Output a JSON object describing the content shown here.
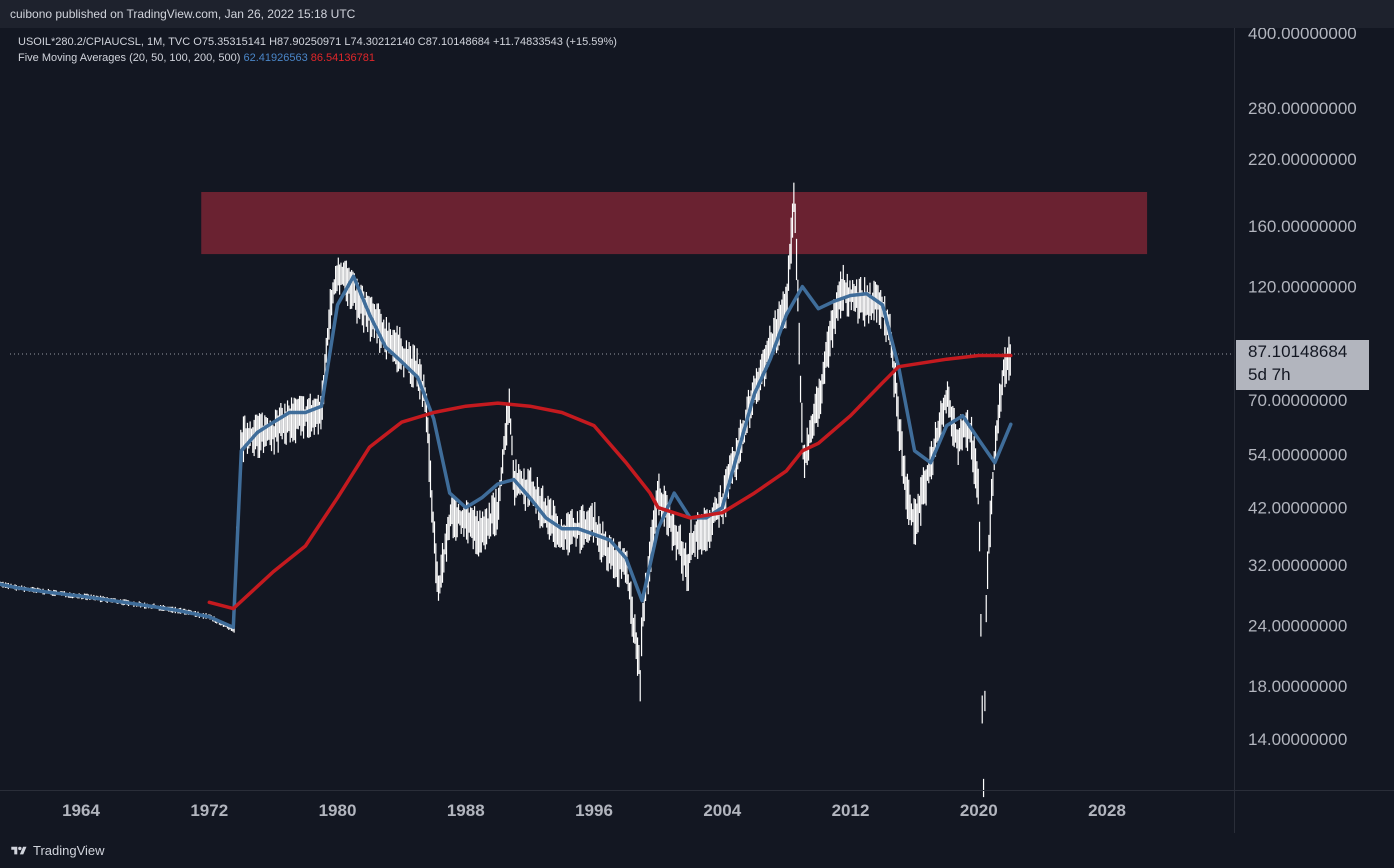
{
  "header": {
    "publish_text": "cuibono published on TradingView.com, Jan 26, 2022 15:18 UTC"
  },
  "legend": {
    "symbol_line": "USOIL*280.2/CPIAUCSL, 1M, TVC",
    "ohlc": "O75.35315141  H87.90250971  L74.30212140  C87.10148684  +11.74833543 (+15.59%)",
    "ma_name": "Five Moving Averages (20, 50, 100, 200, 500)",
    "ma1_value": "62.41926563",
    "ma2_value": "86.54136781"
  },
  "price_tag": {
    "price": "87.10148684",
    "countdown": "5d 7h"
  },
  "footer": {
    "brand": "TradingView"
  },
  "colors": {
    "background": "#131722",
    "ma_blue": "#3f6d9a",
    "ma_red": "#c41a1f",
    "zone": "#6a2231",
    "price_bars": "#ffffff"
  },
  "chart_data": {
    "type": "line",
    "title": "",
    "y_scale": "log",
    "ylim": [
      11,
      420
    ],
    "xlim": [
      1958.3,
      2035.0
    ],
    "y_ticks": [
      "400.00000000",
      "280.00000000",
      "220.00000000",
      "160.00000000",
      "120.00000000",
      "70.00000000",
      "54.00000000",
      "42.00000000",
      "32.00000000",
      "24.00000000",
      "18.00000000",
      "14.00000000"
    ],
    "y_tick_values": [
      400,
      280,
      220,
      160,
      120,
      70,
      54,
      42,
      32,
      24,
      18,
      14
    ],
    "x_ticks": [
      "1964",
      "1972",
      "1980",
      "1988",
      "1996",
      "2004",
      "2012",
      "2020",
      "2028"
    ],
    "x_tick_values": [
      1964,
      1972,
      1980,
      1988,
      1996,
      2004,
      2012,
      2020,
      2028
    ],
    "last_price": 87.10148684,
    "resistance_zone": {
      "x_start": 1971.5,
      "x_end": 2030.5,
      "y_low": 140,
      "y_high": 188
    },
    "series": [
      {
        "kind": "price",
        "x": [
          1958.3,
          1960,
          1962,
          1964,
          1966,
          1968,
          1970,
          1972,
          1973.5,
          1974,
          1975,
          1976,
          1977,
          1978,
          1979,
          1979.5,
          1980,
          1980.5,
          1981,
          1981.5,
          1982,
          1983,
          1984,
          1985,
          1985.5,
          1986,
          1986.3,
          1987,
          1988,
          1989,
          1990,
          1990.7,
          1991,
          1992,
          1993,
          1994,
          1995,
          1996,
          1997,
          1998,
          1998.9,
          1999,
          2000,
          2001,
          2001.9,
          2002,
          2003,
          2004,
          2005,
          2006,
          2007,
          2008,
          2008.5,
          2009,
          2009.1,
          2010,
          2011,
          2011.5,
          2012,
          2013,
          2014,
          2014.5,
          2015,
          2015.5,
          2016,
          2017,
          2018,
          2018.7,
          2019,
          2019.5,
          2020,
          2020.3,
          2020.5,
          2021,
          2021.5,
          2022
        ],
        "y": [
          29.5,
          28.7,
          28.1,
          27.6,
          27.0,
          26.4,
          25.8,
          25.0,
          23.5,
          58,
          60,
          60,
          64,
          65,
          66,
          105,
          130,
          125,
          115,
          110,
          105,
          95,
          88,
          80,
          70,
          38,
          28,
          40,
          40,
          37,
          42,
          70,
          48,
          46,
          41,
          37,
          38,
          39,
          33,
          32,
          18.5,
          25,
          45,
          38,
          31,
          36,
          38,
          43,
          55,
          74,
          90,
          112,
          185,
          58,
          52,
          70,
          105,
          120,
          115,
          112,
          110,
          95,
          64,
          45,
          39,
          52,
          72,
          57,
          62,
          60,
          45,
          11,
          30,
          55,
          80,
          87.1
        ]
      },
      {
        "name": "MA 20",
        "x": [
          1958.3,
          1960,
          1962,
          1964,
          1966,
          1968,
          1970,
          1972,
          1973.5,
          1974,
          1975,
          1976,
          1977,
          1978,
          1979,
          1980,
          1981,
          1982,
          1983,
          1984,
          1985,
          1986,
          1987,
          1988,
          1989,
          1990,
          1991,
          1992,
          1993,
          1994,
          1995,
          1996,
          1997,
          1998,
          1999,
          2000,
          2001,
          2002,
          2003,
          2004,
          2005,
          2006,
          2007,
          2008,
          2009,
          2010,
          2011,
          2012,
          2013,
          2014,
          2015,
          2016,
          2017,
          2018,
          2019,
          2020,
          2021,
          2022
        ],
        "y": [
          29.5,
          28.7,
          28.1,
          27.6,
          27.0,
          26.4,
          25.8,
          25.0,
          23.8,
          55,
          60,
          63,
          66,
          66,
          68,
          110,
          126,
          105,
          90,
          84,
          78,
          64,
          45,
          42,
          44,
          47,
          48,
          44,
          40,
          38,
          38,
          37,
          36,
          33,
          27,
          38,
          45,
          40,
          40,
          42,
          55,
          72,
          85,
          105,
          120,
          108,
          112,
          115,
          116,
          110,
          82,
          55,
          52,
          62,
          65,
          58,
          52,
          62.4
        ]
      },
      {
        "name": "MA 200",
        "x": [
          1972,
          1973.5,
          1976,
          1978,
          1980,
          1982,
          1984,
          1986,
          1988,
          1990,
          1992,
          1994,
          1996,
          1998,
          1999.5,
          2000,
          2002,
          2004,
          2006,
          2008,
          2009,
          2010,
          2012,
          2014,
          2015,
          2016,
          2018,
          2020,
          2022
        ],
        "y": [
          26.8,
          26.0,
          31,
          35,
          44,
          56,
          63,
          66,
          68,
          69,
          68,
          66,
          62,
          52,
          45,
          42,
          40,
          41,
          45,
          50,
          55,
          57,
          65,
          76,
          82,
          83,
          85,
          86.5,
          86.5
        ]
      }
    ]
  }
}
